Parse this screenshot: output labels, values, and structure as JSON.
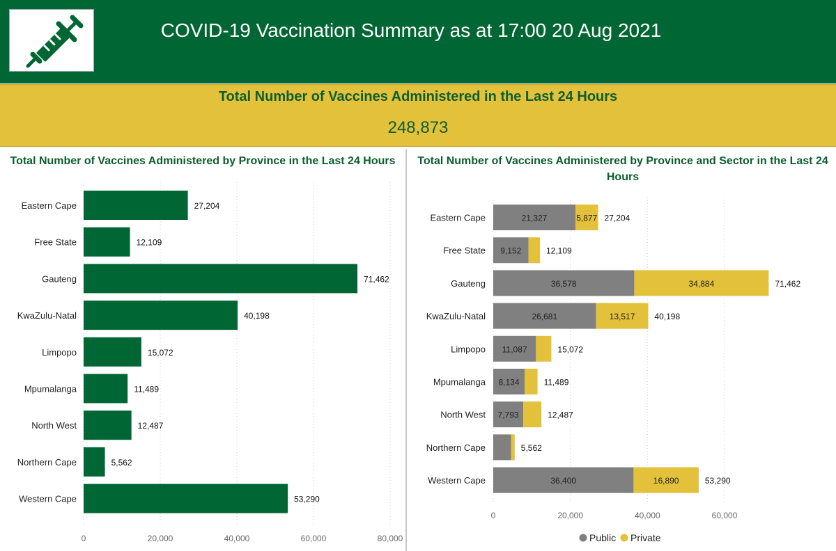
{
  "header": {
    "title": "COVID-19 Vaccination Summary as at 17:00 20 Aug 2021",
    "logo_icon": "syringe-icon"
  },
  "kpi": {
    "title": "Total Number of Vaccines Administered in the Last 24 Hours",
    "value": "248,873"
  },
  "colors": {
    "header_green": "#006633",
    "bar_green": "#006633",
    "kpi_yellow": "#e3c13b",
    "public_grey": "#808080",
    "private_yellow": "#e3c13b"
  },
  "chart_data": [
    {
      "type": "bar",
      "orientation": "horizontal",
      "title": "Total Number of Vaccines Administered by Province in the Last 24 Hours",
      "categories": [
        "Eastern Cape",
        "Free State",
        "Gauteng",
        "KwaZulu-Natal",
        "Limpopo",
        "Mpumalanga",
        "North West",
        "Northern Cape",
        "Western Cape"
      ],
      "values": [
        27204,
        12109,
        71462,
        40198,
        15072,
        11489,
        12487,
        5562,
        53290
      ],
      "value_labels": [
        "27,204",
        "12,109",
        "71,462",
        "40,198",
        "15,072",
        "11,489",
        "12,487",
        "5,562",
        "53,290"
      ],
      "xlim": [
        0,
        80000
      ],
      "xticks": [
        0,
        20000,
        40000,
        60000,
        80000
      ],
      "xtick_labels": [
        "0",
        "20,000",
        "40,000",
        "60,000",
        "80,000"
      ],
      "grid": true
    },
    {
      "type": "bar",
      "orientation": "horizontal",
      "stacked": true,
      "title": "Total Number of Vaccines Administered by Province and Sector in the Last 24 Hours",
      "categories": [
        "Eastern Cape",
        "Free State",
        "Gauteng",
        "KwaZulu-Natal",
        "Limpopo",
        "Mpumalanga",
        "North West",
        "Northern Cape",
        "Western Cape"
      ],
      "series": [
        {
          "name": "Public",
          "values": [
            21327,
            9152,
            36578,
            26681,
            11087,
            8134,
            7793,
            4618,
            36400
          ],
          "labels": [
            "21,327",
            "9,152",
            "36,578",
            "26,681",
            "11,087",
            "8,134",
            "7,793",
            "",
            "36,400"
          ]
        },
        {
          "name": "Private",
          "values": [
            5877,
            2957,
            34884,
            13517,
            3985,
            3355,
            4694,
            944,
            16890
          ],
          "labels": [
            "5,877",
            "",
            "34,884",
            "13,517",
            "",
            "",
            "",
            "",
            "16,890"
          ]
        }
      ],
      "total_labels": [
        "27,204",
        "12,109",
        "71,462",
        "40,198",
        "15,072",
        "11,489",
        "12,487",
        "5,562",
        "53,290"
      ],
      "xlim": [
        0,
        75000
      ],
      "xticks": [
        0,
        20000,
        40000,
        60000
      ],
      "xtick_labels": [
        "0",
        "20,000",
        "40,000",
        "60,000"
      ],
      "legend": {
        "position": "bottom",
        "entries": [
          "Public",
          "Private"
        ]
      },
      "grid": true
    }
  ]
}
